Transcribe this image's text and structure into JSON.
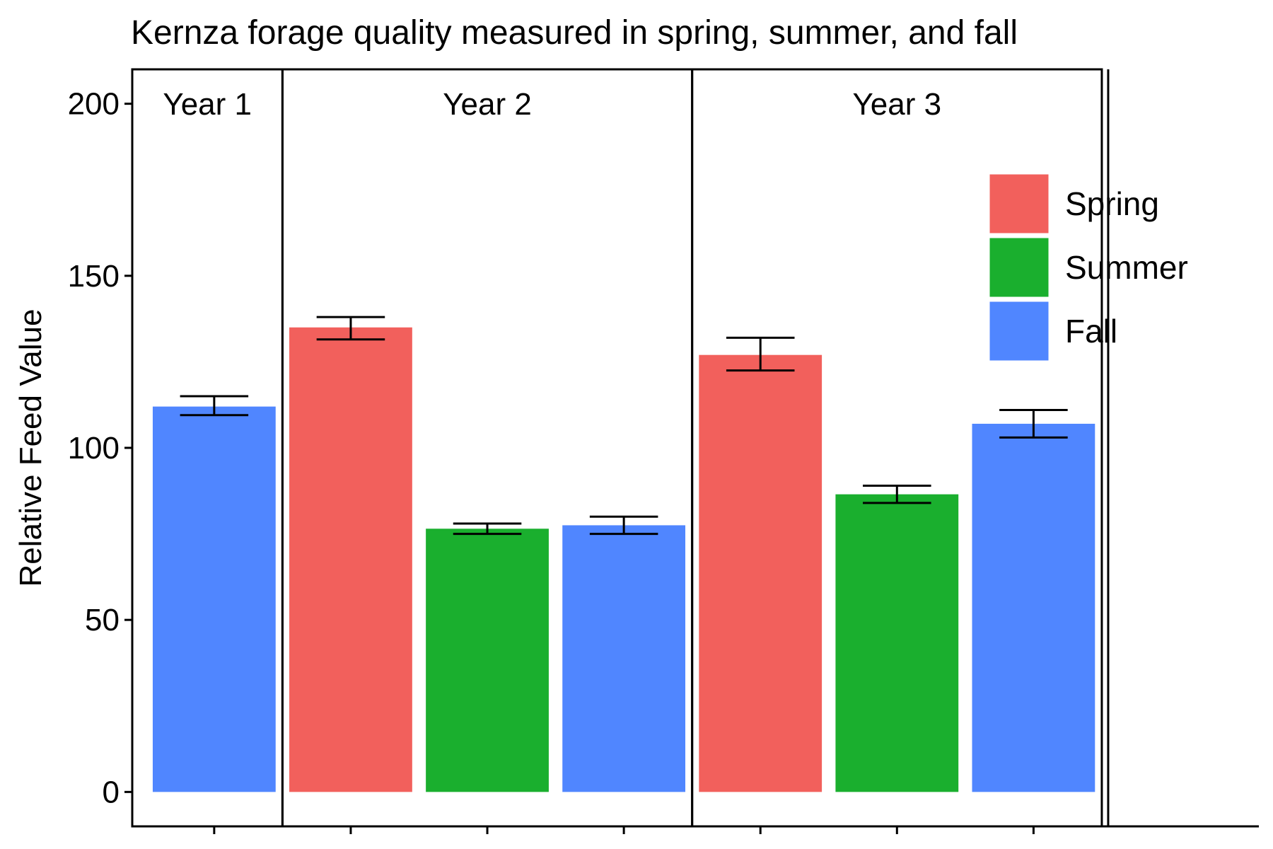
{
  "chart_data": {
    "type": "bar",
    "title": "Kernza forage quality measured in spring, summer, and fall",
    "ylabel": "Relative Feed Value",
    "xlabel": "",
    "ylim": [
      -10,
      210
    ],
    "yticks": [
      0,
      50,
      100,
      150,
      200
    ],
    "grid": false,
    "legend_position": "top-right",
    "legend": [
      {
        "name": "Spring",
        "color": "#F2605C"
      },
      {
        "name": "Summer",
        "color": "#1AAF2E"
      },
      {
        "name": "Fall",
        "color": "#5086FF"
      }
    ],
    "panels": [
      "Year 1",
      "Year 2",
      "Year 3"
    ],
    "bars": [
      {
        "panel": "Year 1",
        "season": "Fall",
        "value": 112,
        "error_low": 109.5,
        "error_high": 115
      },
      {
        "panel": "Year 2",
        "season": "Spring",
        "value": 135,
        "error_low": 131.5,
        "error_high": 138
      },
      {
        "panel": "Year 2",
        "season": "Summer",
        "value": 76.5,
        "error_low": 75,
        "error_high": 78
      },
      {
        "panel": "Year 2",
        "season": "Fall",
        "value": 77.5,
        "error_low": 75,
        "error_high": 80
      },
      {
        "panel": "Year 3",
        "season": "Spring",
        "value": 127,
        "error_low": 122.5,
        "error_high": 132
      },
      {
        "panel": "Year 3",
        "season": "Summer",
        "value": 86.5,
        "error_low": 84,
        "error_high": 89
      },
      {
        "panel": "Year 3",
        "season": "Fall",
        "value": 107,
        "error_low": 103,
        "error_high": 111
      }
    ]
  }
}
